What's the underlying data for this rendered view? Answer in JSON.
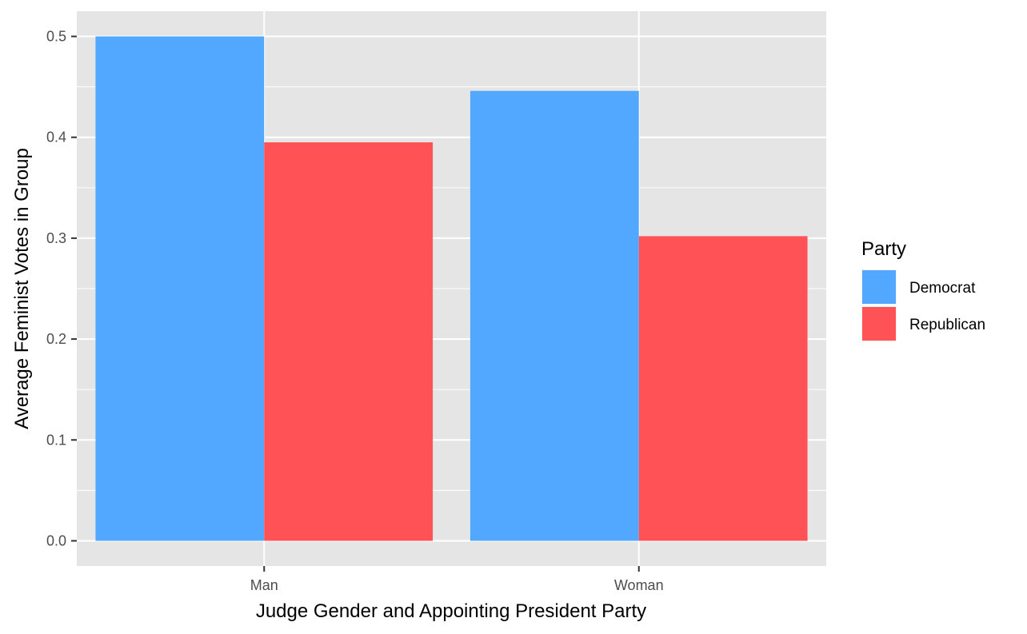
{
  "chart_data": {
    "type": "bar",
    "categories": [
      "Man",
      "Woman"
    ],
    "series": [
      {
        "name": "Democrat",
        "values": [
          0.5,
          0.446
        ],
        "color": "#52a8ff"
      },
      {
        "name": "Republican",
        "values": [
          0.395,
          0.302
        ],
        "color": "#ff5257"
      }
    ],
    "xlabel": "Judge Gender and Appointing President Party",
    "ylabel": "Average Feminist Votes in Group",
    "ylim": [
      -0.025,
      0.525
    ],
    "yticks": [
      "0.0",
      "0.1",
      "0.2",
      "0.3",
      "0.4",
      "0.5"
    ],
    "grid": true,
    "legend": {
      "title": "Party",
      "position": "right"
    },
    "panel_background": "#e5e5e5",
    "grid_color": "#ffffff"
  }
}
